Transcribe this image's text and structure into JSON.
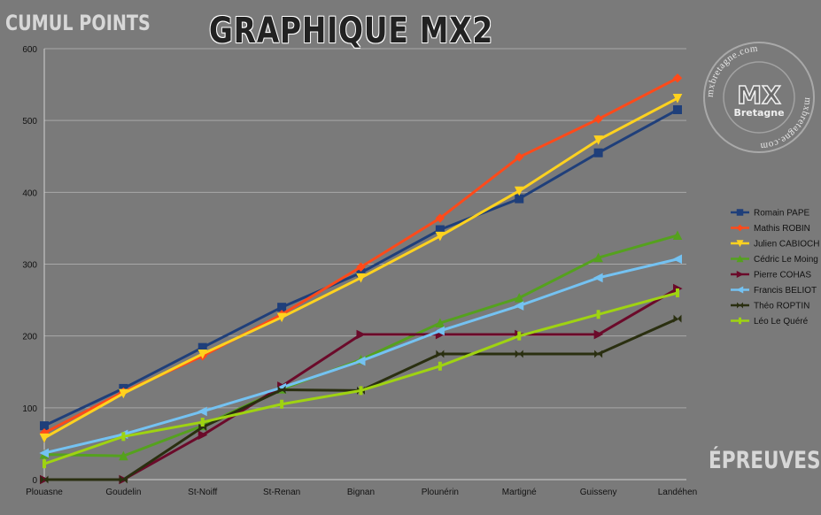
{
  "chart_data": {
    "type": "line",
    "title": "GRAPHIQUE MX2",
    "ylabel": "CUMUL POINTS",
    "xlabel": "ÉPREUVES",
    "categories": [
      "Plouasne",
      "Goudelin",
      "St-Noiff",
      "St-Renan",
      "Bignan",
      "Plounérin",
      "Martigné",
      "Guisseny",
      "Landéhen"
    ],
    "ylim": [
      0,
      600
    ],
    "yticks": [
      0,
      100,
      200,
      300,
      400,
      500,
      600
    ],
    "grid": true,
    "legend_position": "right",
    "series": [
      {
        "name": "Romain PAPE",
        "color": "#1f3f7a",
        "marker": "square",
        "values": [
          75,
          127,
          184,
          240,
          288,
          348,
          391,
          455,
          515
        ]
      },
      {
        "name": "Mathis ROBIN",
        "color": "#ff4a1a",
        "marker": "diamond",
        "values": [
          65,
          122,
          172,
          230,
          296,
          364,
          449,
          502,
          559
        ]
      },
      {
        "name": "Julien CABIOCH",
        "color": "#ffd21f",
        "marker": "triangle-down",
        "values": [
          58,
          120,
          175,
          226,
          281,
          339,
          402,
          473,
          531
        ]
      },
      {
        "name": "Cédric Le Moing",
        "color": "#55a11e",
        "marker": "triangle-up",
        "values": [
          35,
          33,
          75,
          126,
          167,
          218,
          253,
          309,
          340
        ]
      },
      {
        "name": "Pierre COHAS",
        "color": "#6b0a2a",
        "marker": "triangle-right",
        "values": [
          0,
          0,
          62,
          130,
          202,
          202,
          202,
          202,
          266
        ]
      },
      {
        "name": "Francis BELIOT",
        "color": "#74c2f2",
        "marker": "triangle-left",
        "values": [
          37,
          63,
          95,
          128,
          165,
          207,
          242,
          281,
          307
        ]
      },
      {
        "name": "Théo ROPTIN",
        "color": "#2a2f10",
        "marker": "bowtie",
        "values": [
          0,
          0,
          73,
          125,
          124,
          175,
          175,
          175,
          224
        ]
      },
      {
        "name": "Léo Le Quéré",
        "color": "#9fd311",
        "marker": "bar",
        "values": [
          22,
          60,
          80,
          105,
          124,
          158,
          200,
          230,
          260
        ]
      }
    ]
  },
  "watermark": {
    "text": "mxbretagne.com",
    "logo_main": "MX",
    "logo_sub": "Bretagne"
  }
}
